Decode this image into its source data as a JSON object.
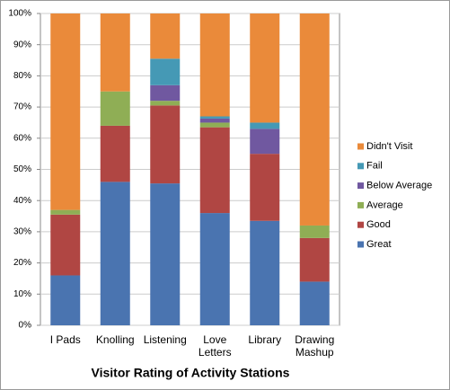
{
  "chart_data": {
    "type": "stacked_bar_100",
    "title": "Visitor Rating of Activity Stations",
    "categories": [
      "I Pads",
      "Knolling",
      "Listening",
      "Love Letters",
      "Library",
      "Drawing Mashup"
    ],
    "series": [
      {
        "name": "Great",
        "color": "#4a74b0",
        "values": [
          16,
          46,
          45.5,
          36,
          33.5,
          14
        ]
      },
      {
        "name": "Good",
        "color": "#b04643",
        "values": [
          19.5,
          18,
          25,
          27.5,
          21.5,
          14
        ]
      },
      {
        "name": "Average",
        "color": "#8fae55",
        "values": [
          1.5,
          11,
          1.5,
          1.5,
          0,
          4
        ]
      },
      {
        "name": "Below Average",
        "color": "#7058a0",
        "values": [
          0,
          0,
          5,
          1.3,
          8,
          0
        ]
      },
      {
        "name": "Fail",
        "color": "#4599b5",
        "values": [
          0,
          0,
          8.5,
          0.7,
          2,
          0
        ]
      },
      {
        "name": "Didn't Visit",
        "color": "#ea8a3a",
        "values": [
          63,
          25,
          14.5,
          33,
          35,
          68
        ]
      }
    ],
    "ylim": [
      0,
      100
    ],
    "yticks": [
      {
        "value": 0,
        "label": "0%"
      },
      {
        "value": 10,
        "label": "10%"
      },
      {
        "value": 20,
        "label": "20%"
      },
      {
        "value": 30,
        "label": "30%"
      },
      {
        "value": 40,
        "label": "40%"
      },
      {
        "value": 50,
        "label": "50%"
      },
      {
        "value": 60,
        "label": "60%"
      },
      {
        "value": 70,
        "label": "70%"
      },
      {
        "value": 80,
        "label": "80%"
      },
      {
        "value": 90,
        "label": "90%"
      },
      {
        "value": 100,
        "label": "100%"
      }
    ],
    "grid": true,
    "legend": "right"
  }
}
